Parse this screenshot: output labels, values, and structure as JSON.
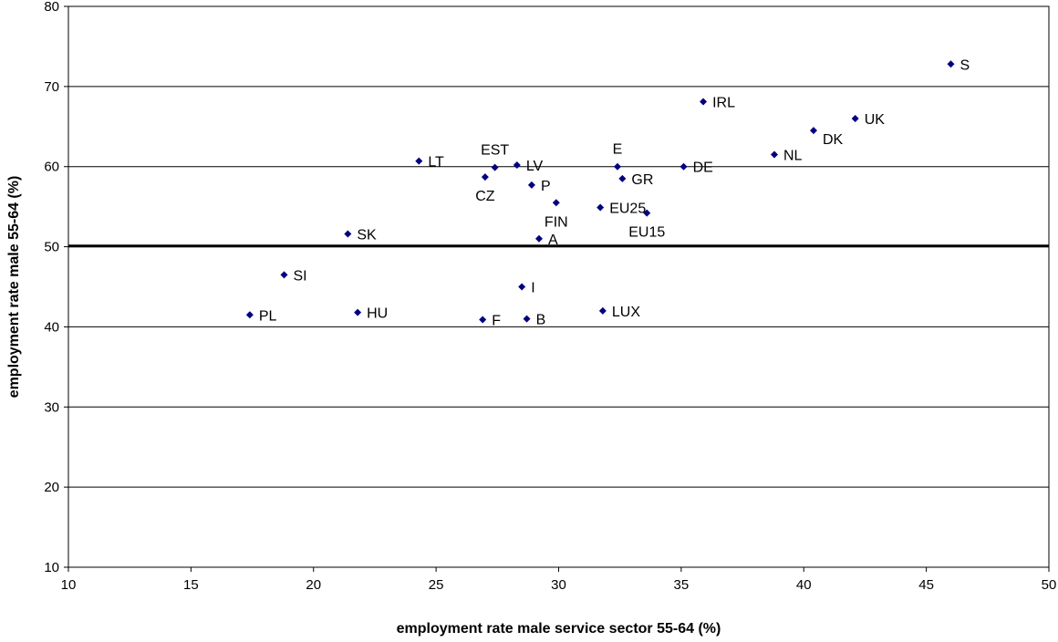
{
  "chart_data": {
    "type": "scatter",
    "title": "",
    "xlabel": "employment rate male service sector 55-64 (%)",
    "ylabel": "employment rate male 55-64 (%)",
    "xlim": [
      10,
      50
    ],
    "ylim": [
      10,
      80
    ],
    "xticks": [
      "10",
      "15",
      "20",
      "25",
      "30",
      "35",
      "40",
      "45",
      "50"
    ],
    "yticks": [
      "10",
      "20",
      "30",
      "40",
      "50",
      "60",
      "70",
      "80"
    ],
    "grid": "horizontal",
    "legend": "none",
    "marker": "diamond",
    "marker_color": "#000080",
    "reference_line": {
      "y": 50.1
    },
    "points": [
      {
        "label": "S",
        "x": 46.0,
        "y": 72.8,
        "label_pos": "right"
      },
      {
        "label": "IRL",
        "x": 35.9,
        "y": 68.1,
        "label_pos": "right"
      },
      {
        "label": "UK",
        "x": 42.1,
        "y": 66.0,
        "label_pos": "right"
      },
      {
        "label": "DK",
        "x": 40.4,
        "y": 64.5,
        "label_pos": "below-right"
      },
      {
        "label": "NL",
        "x": 38.8,
        "y": 61.5,
        "label_pos": "right"
      },
      {
        "label": "DE",
        "x": 35.1,
        "y": 60.0,
        "label_pos": "right"
      },
      {
        "label": "E",
        "x": 32.4,
        "y": 60.0,
        "label_pos": "above"
      },
      {
        "label": "GR",
        "x": 32.6,
        "y": 58.5,
        "label_pos": "right"
      },
      {
        "label": "EU15",
        "x": 33.6,
        "y": 54.2,
        "label_pos": "below"
      },
      {
        "label": "EU25",
        "x": 31.7,
        "y": 54.9,
        "label_pos": "right"
      },
      {
        "label": "FIN",
        "x": 29.9,
        "y": 55.5,
        "label_pos": "below"
      },
      {
        "label": "P",
        "x": 28.9,
        "y": 57.7,
        "label_pos": "right"
      },
      {
        "label": "LV",
        "x": 28.3,
        "y": 60.2,
        "label_pos": "right"
      },
      {
        "label": "EST",
        "x": 27.4,
        "y": 59.9,
        "label_pos": "above"
      },
      {
        "label": "CZ",
        "x": 27.0,
        "y": 58.7,
        "label_pos": "below"
      },
      {
        "label": "LT",
        "x": 24.3,
        "y": 60.7,
        "label_pos": "right"
      },
      {
        "label": "A",
        "x": 29.2,
        "y": 51.0,
        "label_pos": "right"
      },
      {
        "label": "SK",
        "x": 21.4,
        "y": 51.6,
        "label_pos": "right"
      },
      {
        "label": "SI",
        "x": 18.8,
        "y": 46.5,
        "label_pos": "right"
      },
      {
        "label": "I",
        "x": 28.5,
        "y": 45.0,
        "label_pos": "right"
      },
      {
        "label": "LUX",
        "x": 31.8,
        "y": 42.0,
        "label_pos": "right"
      },
      {
        "label": "HU",
        "x": 21.8,
        "y": 41.8,
        "label_pos": "right"
      },
      {
        "label": "PL",
        "x": 17.4,
        "y": 41.5,
        "label_pos": "right"
      },
      {
        "label": "F",
        "x": 26.9,
        "y": 40.9,
        "label_pos": "right"
      },
      {
        "label": "B",
        "x": 28.7,
        "y": 41.0,
        "label_pos": "right"
      }
    ]
  }
}
